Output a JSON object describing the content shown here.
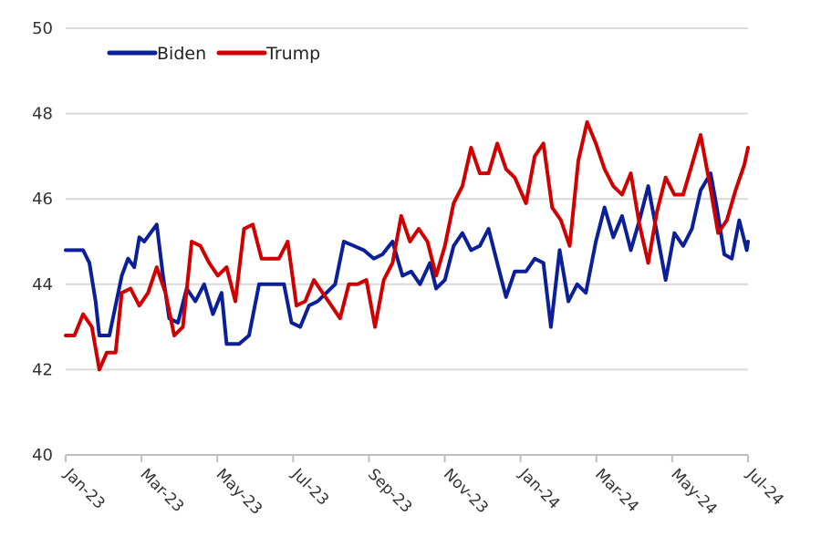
{
  "chart_data": {
    "type": "line",
    "title": "",
    "xlabel": "",
    "ylabel": "",
    "ylim": [
      40,
      50
    ],
    "y_ticks": [
      40,
      42,
      44,
      46,
      48,
      50
    ],
    "x_ticks": [
      "Jan-23",
      "Mar-23",
      "May-23",
      "Jul-23",
      "Sep-23",
      "Nov-23",
      "Jan-24",
      "Mar-24",
      "May-24",
      "Jul-24"
    ],
    "grid": "horizontal",
    "legend_position": "top-left",
    "series": [
      {
        "name": "Biden",
        "color": "#0b1f99",
        "points": [
          [
            "2023-01-01",
            44.8
          ],
          [
            "2023-01-08",
            44.8
          ],
          [
            "2023-01-15",
            44.8
          ],
          [
            "2023-01-20",
            44.5
          ],
          [
            "2023-01-25",
            43.6
          ],
          [
            "2023-01-28",
            42.8
          ],
          [
            "2023-02-05",
            42.8
          ],
          [
            "2023-02-10",
            43.5
          ],
          [
            "2023-02-15",
            44.2
          ],
          [
            "2023-02-20",
            44.6
          ],
          [
            "2023-02-25",
            44.4
          ],
          [
            "2023-03-01",
            45.1
          ],
          [
            "2023-03-05",
            45.0
          ],
          [
            "2023-03-10",
            45.2
          ],
          [
            "2023-03-15",
            45.4
          ],
          [
            "2023-03-20",
            44.2
          ],
          [
            "2023-03-25",
            43.2
          ],
          [
            "2023-04-01",
            43.1
          ],
          [
            "2023-04-08",
            43.9
          ],
          [
            "2023-04-15",
            43.6
          ],
          [
            "2023-04-22",
            44.0
          ],
          [
            "2023-04-29",
            43.3
          ],
          [
            "2023-05-06",
            43.8
          ],
          [
            "2023-05-10",
            42.6
          ],
          [
            "2023-05-20",
            42.6
          ],
          [
            "2023-05-28",
            42.8
          ],
          [
            "2023-06-05",
            44.0
          ],
          [
            "2023-06-15",
            44.0
          ],
          [
            "2023-06-25",
            44.0
          ],
          [
            "2023-07-01",
            43.1
          ],
          [
            "2023-07-08",
            43.0
          ],
          [
            "2023-07-15",
            43.5
          ],
          [
            "2023-07-22",
            43.6
          ],
          [
            "2023-07-29",
            43.8
          ],
          [
            "2023-08-05",
            44.0
          ],
          [
            "2023-08-12",
            45.0
          ],
          [
            "2023-08-20",
            44.9
          ],
          [
            "2023-08-28",
            44.8
          ],
          [
            "2023-09-05",
            44.6
          ],
          [
            "2023-09-12",
            44.7
          ],
          [
            "2023-09-20",
            45.0
          ],
          [
            "2023-09-28",
            44.2
          ],
          [
            "2023-10-05",
            44.3
          ],
          [
            "2023-10-12",
            44.0
          ],
          [
            "2023-10-20",
            44.5
          ],
          [
            "2023-10-25",
            43.9
          ],
          [
            "2023-11-01",
            44.1
          ],
          [
            "2023-11-08",
            44.9
          ],
          [
            "2023-11-15",
            45.2
          ],
          [
            "2023-11-22",
            44.8
          ],
          [
            "2023-11-29",
            44.9
          ],
          [
            "2023-12-06",
            45.3
          ],
          [
            "2023-12-13",
            44.5
          ],
          [
            "2023-12-20",
            43.7
          ],
          [
            "2023-12-27",
            44.3
          ],
          [
            "2024-01-05",
            44.3
          ],
          [
            "2024-01-12",
            44.6
          ],
          [
            "2024-01-19",
            44.5
          ],
          [
            "2024-01-25",
            43.0
          ],
          [
            "2024-02-01",
            44.8
          ],
          [
            "2024-02-08",
            43.6
          ],
          [
            "2024-02-15",
            44.0
          ],
          [
            "2024-02-22",
            43.8
          ],
          [
            "2024-03-01",
            45.0
          ],
          [
            "2024-03-08",
            45.8
          ],
          [
            "2024-03-15",
            45.1
          ],
          [
            "2024-03-22",
            45.6
          ],
          [
            "2024-03-29",
            44.8
          ],
          [
            "2024-04-05",
            45.5
          ],
          [
            "2024-04-12",
            46.3
          ],
          [
            "2024-04-19",
            45.2
          ],
          [
            "2024-04-26",
            44.1
          ],
          [
            "2024-05-03",
            45.2
          ],
          [
            "2024-05-10",
            44.9
          ],
          [
            "2024-05-17",
            45.3
          ],
          [
            "2024-05-24",
            46.2
          ],
          [
            "2024-06-01",
            46.6
          ],
          [
            "2024-06-06",
            45.8
          ],
          [
            "2024-06-12",
            44.7
          ],
          [
            "2024-06-18",
            44.6
          ],
          [
            "2024-06-24",
            45.5
          ],
          [
            "2024-06-30",
            44.8
          ],
          [
            "2024-07-01",
            45.0
          ]
        ]
      },
      {
        "name": "Trump",
        "color": "#d00000",
        "points": [
          [
            "2023-01-01",
            42.8
          ],
          [
            "2023-01-08",
            42.8
          ],
          [
            "2023-01-15",
            43.3
          ],
          [
            "2023-01-22",
            43.0
          ],
          [
            "2023-01-28",
            42.0
          ],
          [
            "2023-02-03",
            42.4
          ],
          [
            "2023-02-10",
            42.4
          ],
          [
            "2023-02-15",
            43.8
          ],
          [
            "2023-02-22",
            43.9
          ],
          [
            "2023-03-01",
            43.5
          ],
          [
            "2023-03-08",
            43.8
          ],
          [
            "2023-03-15",
            44.4
          ],
          [
            "2023-03-22",
            43.8
          ],
          [
            "2023-03-29",
            42.8
          ],
          [
            "2023-04-05",
            43.0
          ],
          [
            "2023-04-12",
            45.0
          ],
          [
            "2023-04-19",
            44.9
          ],
          [
            "2023-04-26",
            44.5
          ],
          [
            "2023-05-03",
            44.2
          ],
          [
            "2023-05-10",
            44.4
          ],
          [
            "2023-05-17",
            43.6
          ],
          [
            "2023-05-24",
            45.3
          ],
          [
            "2023-05-31",
            45.4
          ],
          [
            "2023-06-07",
            44.6
          ],
          [
            "2023-06-14",
            44.6
          ],
          [
            "2023-06-21",
            44.6
          ],
          [
            "2023-06-28",
            45.0
          ],
          [
            "2023-07-05",
            43.5
          ],
          [
            "2023-07-12",
            43.6
          ],
          [
            "2023-07-19",
            44.1
          ],
          [
            "2023-07-26",
            43.8
          ],
          [
            "2023-08-02",
            43.5
          ],
          [
            "2023-08-09",
            43.2
          ],
          [
            "2023-08-16",
            44.0
          ],
          [
            "2023-08-23",
            44.0
          ],
          [
            "2023-08-30",
            44.1
          ],
          [
            "2023-09-06",
            43.0
          ],
          [
            "2023-09-13",
            44.1
          ],
          [
            "2023-09-20",
            44.5
          ],
          [
            "2023-09-27",
            45.6
          ],
          [
            "2023-10-04",
            45.0
          ],
          [
            "2023-10-11",
            45.3
          ],
          [
            "2023-10-18",
            45.0
          ],
          [
            "2023-10-25",
            44.2
          ],
          [
            "2023-11-01",
            44.9
          ],
          [
            "2023-11-08",
            45.9
          ],
          [
            "2023-11-15",
            46.3
          ],
          [
            "2023-11-22",
            47.2
          ],
          [
            "2023-11-29",
            46.6
          ],
          [
            "2023-12-06",
            46.6
          ],
          [
            "2023-12-13",
            47.3
          ],
          [
            "2023-12-20",
            46.7
          ],
          [
            "2023-12-27",
            46.5
          ],
          [
            "2024-01-05",
            45.9
          ],
          [
            "2024-01-12",
            47.0
          ],
          [
            "2024-01-19",
            47.3
          ],
          [
            "2024-01-26",
            45.8
          ],
          [
            "2024-02-02",
            45.5
          ],
          [
            "2024-02-09",
            44.9
          ],
          [
            "2024-02-16",
            46.9
          ],
          [
            "2024-02-23",
            47.8
          ],
          [
            "2024-03-01",
            47.3
          ],
          [
            "2024-03-08",
            46.7
          ],
          [
            "2024-03-15",
            46.3
          ],
          [
            "2024-03-22",
            46.1
          ],
          [
            "2024-03-29",
            46.6
          ],
          [
            "2024-04-05",
            45.4
          ],
          [
            "2024-04-12",
            44.5
          ],
          [
            "2024-04-19",
            45.7
          ],
          [
            "2024-04-26",
            46.5
          ],
          [
            "2024-05-03",
            46.1
          ],
          [
            "2024-05-10",
            46.1
          ],
          [
            "2024-05-17",
            46.8
          ],
          [
            "2024-05-24",
            47.5
          ],
          [
            "2024-05-31",
            46.4
          ],
          [
            "2024-06-07",
            45.2
          ],
          [
            "2024-06-14",
            45.5
          ],
          [
            "2024-06-21",
            46.2
          ],
          [
            "2024-06-28",
            46.8
          ],
          [
            "2024-07-01",
            47.2
          ]
        ]
      }
    ]
  }
}
